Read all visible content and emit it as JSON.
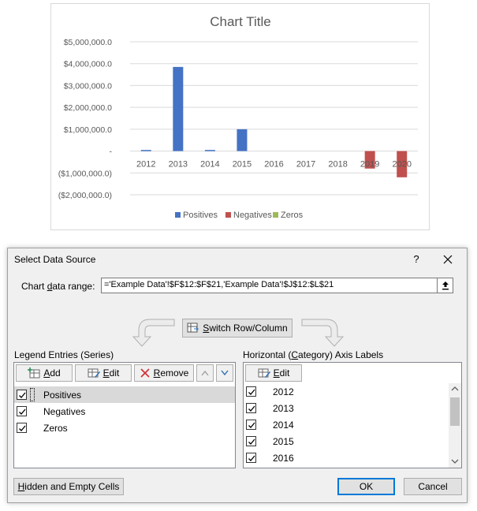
{
  "chart": {
    "title": "Chart Title",
    "colors": {
      "positives": "#4472c4",
      "negatives": "#c0504d",
      "zeros": "#9bbb59"
    }
  },
  "chart_data": {
    "type": "bar",
    "title": "Chart Title",
    "categories": [
      "2012",
      "2013",
      "2014",
      "2015",
      "2016",
      "2017",
      "2018",
      "2019",
      "2020"
    ],
    "series": [
      {
        "name": "Positives",
        "values": [
          50000,
          3850000,
          50000,
          1000000,
          0,
          0,
          0,
          0,
          0
        ]
      },
      {
        "name": "Negatives",
        "values": [
          0,
          0,
          0,
          0,
          0,
          0,
          0,
          -800000,
          -1200000
        ]
      },
      {
        "name": "Zeros",
        "values": [
          0,
          0,
          0,
          0,
          0,
          0,
          0,
          0,
          0
        ]
      }
    ],
    "y_ticks": [
      "$5,000,000.0",
      "$4,000,000.0",
      "$3,000,000.0",
      "$2,000,000.0",
      "$1,000,000.0",
      "-",
      "($1,000,000.0)",
      "($2,000,000.0)"
    ],
    "ylim": [
      -2000000,
      5000000
    ],
    "grid": true,
    "legend_position": "bottom"
  },
  "dialog": {
    "title": "Select Data Source",
    "help_label": "?",
    "range_label_pre": "Chart ",
    "range_label_u": "d",
    "range_label_post": "ata range:",
    "range_value": "='Example Data'!$F$12:$F$21,'Example Data'!$J$12:$L$21",
    "switch_pre": "",
    "switch_u": "S",
    "switch_post": "witch Row/Column",
    "legend_title_pre": "Le",
    "legend_title_u": "g",
    "legend_title_post": "end Entries (Series)",
    "add_u": "A",
    "add_post": "dd",
    "edit_u": "E",
    "edit_post": "dit",
    "remove_u": "R",
    "remove_post": "emove",
    "series": [
      "Positives",
      "Negatives",
      "Zeros"
    ],
    "axis_title_pre": "Horizontal (",
    "axis_title_u": "C",
    "axis_title_post": "ategory) Axis Labels",
    "axis_edit_u": "E",
    "axis_edit_post": "dit",
    "axis_labels": [
      "2012",
      "2013",
      "2014",
      "2015",
      "2016"
    ],
    "hidden_u": "H",
    "hidden_post": "idden and Empty Cells",
    "ok_label": "OK",
    "cancel_label": "Cancel"
  }
}
